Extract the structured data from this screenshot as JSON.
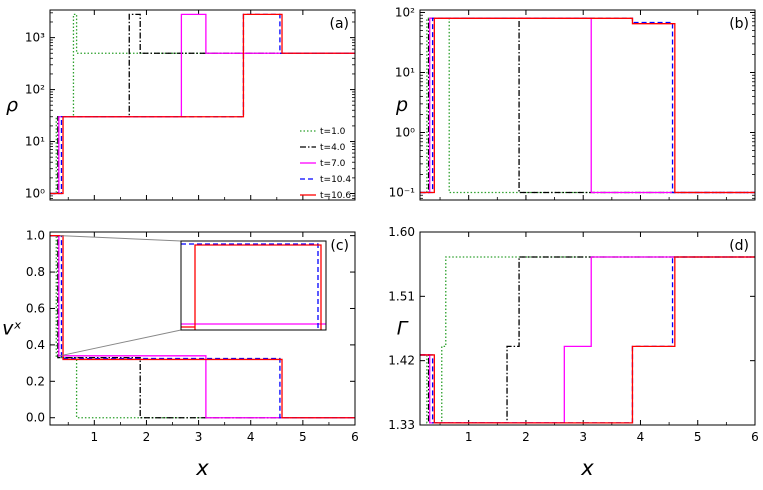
{
  "chart_data": [
    {
      "panel": "(a)",
      "type": "line",
      "ylabel": "ρ",
      "yscale": "log",
      "xlim": [
        0.15,
        6
      ],
      "ylim": [
        0.75,
        3400
      ],
      "yticks": [
        {
          "v": 1,
          "t": "10⁰"
        },
        {
          "v": 10,
          "t": "10¹"
        },
        {
          "v": 100,
          "t": "10²"
        },
        {
          "v": 1000,
          "t": "10³"
        }
      ],
      "legend": {
        "position": "right-center",
        "entries": [
          "t=1.0",
          "t=4.0",
          "t=7.0",
          "t=10.4",
          "t=10.6"
        ]
      },
      "series": [
        {
          "name": "t=1.0",
          "x": [
            0.15,
            0.27,
            0.27,
            0.6,
            0.6,
            0.66,
            0.66,
            6
          ],
          "y": [
            1,
            1,
            30,
            30,
            2800,
            2800,
            500,
            500
          ]
        },
        {
          "name": "t=4.0",
          "x": [
            0.15,
            0.3,
            0.3,
            1.67,
            1.67,
            1.88,
            1.88,
            6
          ],
          "y": [
            1,
            1,
            30,
            30,
            2800,
            2800,
            500,
            500
          ]
        },
        {
          "name": "t=7.0",
          "x": [
            0.15,
            0.32,
            0.32,
            2.67,
            2.67,
            3.14,
            3.14,
            6
          ],
          "y": [
            1,
            1,
            30,
            30,
            2800,
            2800,
            500,
            500
          ]
        },
        {
          "name": "t=10.4",
          "x": [
            0.15,
            0.37,
            0.37,
            3.86,
            3.86,
            4.56,
            4.56,
            6
          ],
          "y": [
            1,
            1,
            30,
            30,
            2800,
            2800,
            500,
            500
          ]
        },
        {
          "name": "t=10.6",
          "x": [
            0.15,
            0.4,
            0.4,
            3.86,
            3.86,
            4.6,
            4.6,
            6
          ],
          "y": [
            1,
            1,
            30,
            30,
            2800,
            2800,
            500,
            500
          ]
        }
      ]
    },
    {
      "panel": "(b)",
      "type": "line",
      "ylabel": "p",
      "yscale": "log",
      "xlim": [
        0.15,
        6
      ],
      "ylim": [
        0.075,
        110
      ],
      "yticks": [
        {
          "v": 0.1,
          "t": "10⁻¹"
        },
        {
          "v": 1,
          "t": "10⁰"
        },
        {
          "v": 10,
          "t": "10¹"
        },
        {
          "v": 100,
          "t": "10²"
        }
      ],
      "series": [
        {
          "name": "t=1.0",
          "x": [
            0.15,
            0.27,
            0.27,
            0.66,
            0.66,
            6
          ],
          "y": [
            0.1,
            0.1,
            80,
            80,
            0.1,
            0.1
          ]
        },
        {
          "name": "t=4.0",
          "x": [
            0.15,
            0.3,
            0.3,
            1.88,
            1.88,
            6
          ],
          "y": [
            0.1,
            0.1,
            80,
            80,
            0.1,
            0.1
          ]
        },
        {
          "name": "t=7.0",
          "x": [
            0.15,
            0.32,
            0.32,
            3.14,
            3.14,
            6
          ],
          "y": [
            0.1,
            0.1,
            80,
            80,
            0.1,
            0.1
          ]
        },
        {
          "name": "t=10.4",
          "x": [
            0.15,
            0.37,
            0.37,
            3.86,
            3.86,
            4.56,
            4.56,
            6
          ],
          "y": [
            0.1,
            0.1,
            80,
            80,
            68,
            68,
            0.1,
            0.1
          ]
        },
        {
          "name": "t=10.6",
          "x": [
            0.15,
            0.4,
            0.4,
            3.86,
            3.86,
            4.6,
            4.6,
            6
          ],
          "y": [
            0.1,
            0.1,
            80,
            80,
            65,
            65,
            0.1,
            0.1
          ]
        }
      ]
    },
    {
      "panel": "(c)",
      "type": "line",
      "ylabel": "vˣ",
      "yscale": "linear",
      "xlim": [
        0.15,
        6
      ],
      "ylim": [
        -0.04,
        1.02
      ],
      "yticks": [
        {
          "v": 0,
          "t": "0.0"
        },
        {
          "v": 0.2,
          "t": "0.2"
        },
        {
          "v": 0.4,
          "t": "0.4"
        },
        {
          "v": 0.6,
          "t": "0.6"
        },
        {
          "v": 0.8,
          "t": "0.8"
        },
        {
          "v": 1,
          "t": "1.0"
        }
      ],
      "inset": {
        "xlim": [
          3.7,
          4.7
        ],
        "ylim": [
          0.3,
          0.36
        ]
      },
      "series": [
        {
          "name": "t=1.0",
          "x": [
            0.15,
            0.27,
            0.27,
            0.66,
            0.66,
            6
          ],
          "y": [
            1,
            1,
            0.33,
            0.33,
            0,
            0
          ]
        },
        {
          "name": "t=4.0",
          "x": [
            0.15,
            0.3,
            0.3,
            1.88,
            1.88,
            6
          ],
          "y": [
            1,
            1,
            0.33,
            0.33,
            0,
            0
          ]
        },
        {
          "name": "t=7.0",
          "x": [
            0.15,
            0.32,
            0.32,
            3.14,
            3.14,
            6
          ],
          "y": [
            1,
            1,
            0.34,
            0.34,
            0,
            0
          ]
        },
        {
          "name": "t=10.4",
          "x": [
            0.15,
            0.37,
            0.37,
            4.56,
            4.56,
            6
          ],
          "y": [
            1,
            1,
            0.325,
            0.325,
            0,
            0
          ]
        },
        {
          "name": "t=10.6",
          "x": [
            0.15,
            0.4,
            0.4,
            4.6,
            4.6,
            6
          ],
          "y": [
            1,
            1,
            0.32,
            0.32,
            0,
            0
          ]
        }
      ]
    },
    {
      "panel": "(d)",
      "type": "line",
      "ylabel": "Γ",
      "yscale": "linear",
      "xlim": [
        0.15,
        6
      ],
      "ylim": [
        1.33,
        1.6
      ],
      "yticks": [
        {
          "v": 1.33,
          "t": "1.33"
        },
        {
          "v": 1.42,
          "t": "1.42"
        },
        {
          "v": 1.51,
          "t": "1.51"
        },
        {
          "v": 1.6,
          "t": "1.60"
        }
      ],
      "series": [
        {
          "name": "t=1.0",
          "x": [
            0.15,
            0.27,
            0.27,
            0.53,
            0.53,
            0.6,
            0.6,
            0.66,
            0.66,
            6
          ],
          "y": [
            1.428,
            1.428,
            1.333,
            1.333,
            1.44,
            1.44,
            1.565,
            1.565,
            1.565,
            1.565
          ]
        },
        {
          "name": "t=4.0",
          "x": [
            0.15,
            0.3,
            0.3,
            1.67,
            1.67,
            1.88,
            1.88,
            6
          ],
          "y": [
            1.428,
            1.428,
            1.333,
            1.333,
            1.44,
            1.44,
            1.565,
            1.565
          ]
        },
        {
          "name": "t=7.0",
          "x": [
            0.15,
            0.32,
            0.32,
            2.67,
            2.67,
            3.14,
            3.14,
            6
          ],
          "y": [
            1.428,
            1.428,
            1.333,
            1.333,
            1.44,
            1.44,
            1.565,
            1.565
          ]
        },
        {
          "name": "t=10.4",
          "x": [
            0.15,
            0.37,
            0.37,
            3.86,
            3.86,
            4.56,
            4.56,
            6
          ],
          "y": [
            1.428,
            1.428,
            1.333,
            1.333,
            1.44,
            1.44,
            1.565,
            1.565
          ]
        },
        {
          "name": "t=10.6",
          "x": [
            0.15,
            0.4,
            0.4,
            3.86,
            3.86,
            4.6,
            4.6,
            6
          ],
          "y": [
            1.428,
            1.428,
            1.333,
            1.333,
            1.44,
            1.44,
            1.565,
            1.565
          ]
        }
      ]
    }
  ],
  "shared": {
    "xlabel": "x",
    "xticks": [
      1,
      2,
      3,
      4,
      5,
      6
    ],
    "styles": {
      "t=1.0": {
        "color": "#2ca02c",
        "dash": "1.5,2"
      },
      "t=4.0": {
        "color": "#000000",
        "dash": "6,2,1.5,2"
      },
      "t=7.0": {
        "color": "#ff00ff",
        "dash": ""
      },
      "t=10.4": {
        "color": "#0000ff",
        "dash": "5,3"
      },
      "t=10.6": {
        "color": "#ff0000",
        "dash": ""
      }
    }
  }
}
